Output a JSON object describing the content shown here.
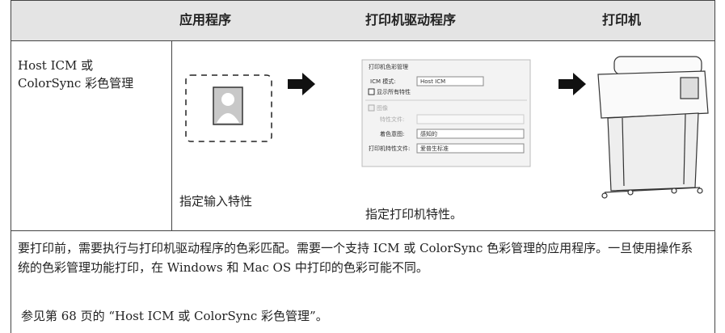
{
  "table": {
    "header": [
      "应用程序",
      "打印机驱动程序",
      "打印机"
    ],
    "rows": [
      {
        "label": "Host ICM 或 ColorSync 彩色管理",
        "application_caption": "指定输入特性",
        "driver_caption": "指定打印机特性。"
      }
    ]
  },
  "driver_dialog": {
    "title": "打印机色彩管理",
    "icm_mode_label": "ICM 模式:",
    "icm_mode_value": "Host ICM",
    "show_all": "显示所有特性",
    "image": "图像",
    "profile_label": "特性文件:",
    "intent_label": "着色意图:",
    "intent_value": "感知的",
    "printer_profile_label": "打印机特性文件:",
    "printer_profile_value": "爱普生标准"
  },
  "note": {
    "text": "要打印前，需要执行与打印机驱动程序的色彩匹配。需要一个支持 ICM 或 ColorSync 色彩管理的应用程序。一旦使用操作系统的色彩管理功能打印，在 Windows 和 Mac OS 中打印的色彩可能不同。",
    "reference": "参见第 68 页的 “Host ICM 或 ColorSync 彩色管理”。"
  }
}
